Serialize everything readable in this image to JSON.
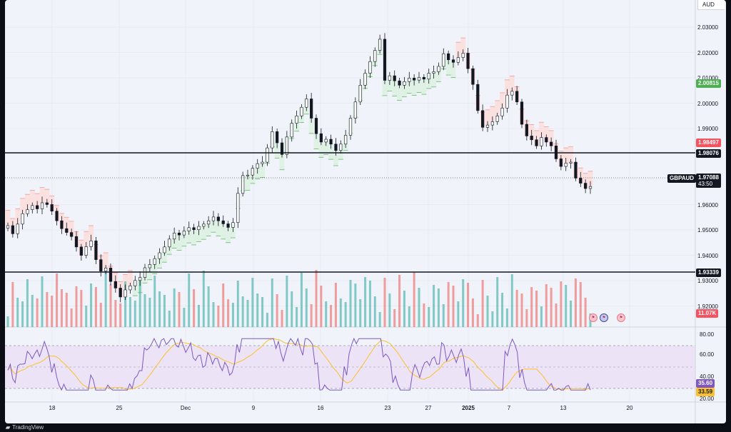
{
  "currency": "AUD",
  "symbol": "GBPAUD",
  "countdown": "43:50",
  "brand": "TradingView",
  "price_axis": [
    "2.03000",
    "2.02000",
    "2.01000",
    "2.00000",
    "1.99000",
    "1.96000",
    "1.95000",
    "1.94000",
    "1.93000",
    "1.92000"
  ],
  "price_tags": {
    "last_price": "1.97088",
    "stop_level": "2.00815",
    "stop_upper": "1.98497",
    "hline_upper": "1.98076",
    "hline_lower": "1.93339",
    "volume": "11.07K"
  },
  "time_axis": [
    "18",
    "25",
    "Dec",
    "9",
    "16",
    "23",
    "27",
    "2025",
    "7",
    "13",
    "20"
  ],
  "osc_axis": [
    "80.00",
    "60.00",
    "40.00",
    "20.00"
  ],
  "osc_tags": {
    "rsi": "35.60",
    "rsi_ma": "33.59"
  },
  "colors": {
    "up": "#26a69a",
    "down": "#ef5350",
    "candle": "#131722",
    "bull_fill": "#dff1e4",
    "bear_fill": "#fbe0e0",
    "rsi": "#7e57c2",
    "rsi_ma": "#fbc02d"
  },
  "chart_data": {
    "type": "line",
    "price_range": [
      1.915,
      2.0345
    ],
    "rsi_range": [
      20,
      85
    ],
    "candles": [
      1.9555,
      1.9523,
      1.9561,
      1.9602,
      1.9618,
      1.9634,
      1.9621,
      1.9645,
      1.9638,
      1.9612,
      1.9574,
      1.9543,
      1.9528,
      1.9512,
      1.9471,
      1.9438,
      1.9472,
      1.9495,
      1.9421,
      1.9376,
      1.9388,
      1.9335,
      1.9309,
      1.9274,
      1.9302,
      1.9318,
      1.9339,
      1.9351,
      1.9389,
      1.9402,
      1.9425,
      1.9448,
      1.9471,
      1.9502,
      1.9526,
      1.9518,
      1.9534,
      1.9547,
      1.9539,
      1.9552,
      1.9561,
      1.9574,
      1.9589,
      1.9574,
      1.9562,
      1.9548,
      1.9567,
      1.9682,
      1.9752,
      1.9754,
      1.9781,
      1.9799,
      1.9805,
      1.9861,
      1.9925,
      1.9881,
      1.9835,
      1.9904,
      1.9958,
      1.9987,
      2.0021,
      2.0054,
      1.9978,
      1.9917,
      1.9884,
      1.9895,
      1.9876,
      1.9851,
      1.9876,
      1.9911,
      1.9978,
      2.0042,
      2.0108,
      2.0155,
      2.0201,
      2.0245,
      2.0289,
      2.0127,
      2.0145,
      2.0125,
      2.0108,
      2.0122,
      2.0136,
      2.0128,
      2.0139,
      2.0132,
      2.0155,
      2.0161,
      2.0182,
      2.0232,
      2.0208,
      2.0198,
      2.0217,
      2.0234,
      2.0173,
      2.0111,
      2.0008,
      1.9942,
      1.9951,
      1.9964,
      1.9987,
      2.0018,
      2.0069,
      2.0084,
      2.0042,
      1.9954,
      1.9908,
      1.9893,
      1.9869,
      1.9902,
      1.9884,
      1.9869,
      1.9818,
      1.9788,
      1.9801,
      1.9805,
      1.9742,
      1.9722,
      1.9701,
      1.9709
    ]
  }
}
